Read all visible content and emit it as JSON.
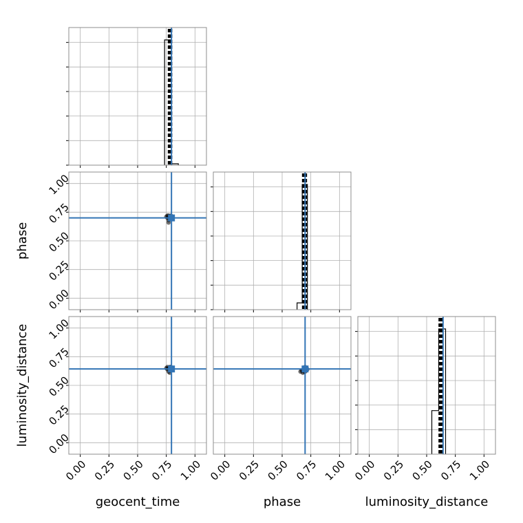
{
  "chart_data": {
    "type": "corner",
    "parameters": [
      "geocent_time",
      "phase",
      "luminosity_distance"
    ],
    "axis_range": [
      -0.1,
      1.1
    ],
    "tick_values": [
      0.0,
      0.25,
      0.5,
      0.75,
      1.0
    ],
    "tick_labels": [
      "0.00",
      "0.25",
      "0.50",
      "0.75",
      "1.00"
    ],
    "truths": [
      0.795,
      0.7,
      0.643
    ],
    "truth_color": "#3274b5",
    "grid": true,
    "histograms": [
      {
        "parameter": "geocent_time",
        "bins": [
          [
            0.735,
            0.795,
            0.92
          ],
          [
            0.795,
            0.855,
            0.01
          ]
        ],
        "quantiles": [
          0.775,
          0.785,
          0.79
        ]
      },
      {
        "parameter": "phase",
        "bins": [
          [
            0.63,
            0.675,
            0.05
          ],
          [
            0.675,
            0.72,
            0.92
          ]
        ],
        "quantiles": [
          0.685,
          0.695,
          0.705
        ]
      },
      {
        "parameter": "luminosity_distance",
        "bins": [
          [
            0.545,
            0.605,
            0.32
          ],
          [
            0.605,
            0.665,
            0.92
          ]
        ],
        "quantiles": [
          0.615,
          0.625,
          0.635
        ]
      }
    ],
    "scatter_panels": [
      {
        "x": "geocent_time",
        "y": "phase",
        "points": [
          [
            0.75,
            0.71
          ],
          [
            0.76,
            0.7
          ],
          [
            0.77,
            0.72
          ],
          [
            0.78,
            0.71
          ],
          [
            0.79,
            0.7
          ],
          [
            0.8,
            0.71
          ],
          [
            0.77,
            0.68
          ],
          [
            0.78,
            0.69
          ],
          [
            0.76,
            0.72
          ],
          [
            0.8,
            0.7
          ],
          [
            0.79,
            0.72
          ],
          [
            0.77,
            0.66
          ]
        ]
      },
      {
        "x": "geocent_time",
        "y": "luminosity_distance",
        "points": [
          [
            0.75,
            0.65
          ],
          [
            0.76,
            0.66
          ],
          [
            0.77,
            0.65
          ],
          [
            0.78,
            0.64
          ],
          [
            0.79,
            0.66
          ],
          [
            0.8,
            0.65
          ],
          [
            0.77,
            0.62
          ],
          [
            0.78,
            0.61
          ],
          [
            0.76,
            0.64
          ],
          [
            0.8,
            0.64
          ],
          [
            0.79,
            0.63
          ],
          [
            0.78,
            0.66
          ]
        ]
      },
      {
        "x": "phase",
        "y": "luminosity_distance",
        "points": [
          [
            0.66,
            0.62
          ],
          [
            0.67,
            0.63
          ],
          [
            0.68,
            0.63
          ],
          [
            0.69,
            0.64
          ],
          [
            0.7,
            0.65
          ],
          [
            0.71,
            0.65
          ],
          [
            0.7,
            0.66
          ],
          [
            0.72,
            0.64
          ],
          [
            0.69,
            0.62
          ],
          [
            0.71,
            0.63
          ],
          [
            0.68,
            0.61
          ],
          [
            0.7,
            0.62
          ]
        ]
      }
    ]
  }
}
